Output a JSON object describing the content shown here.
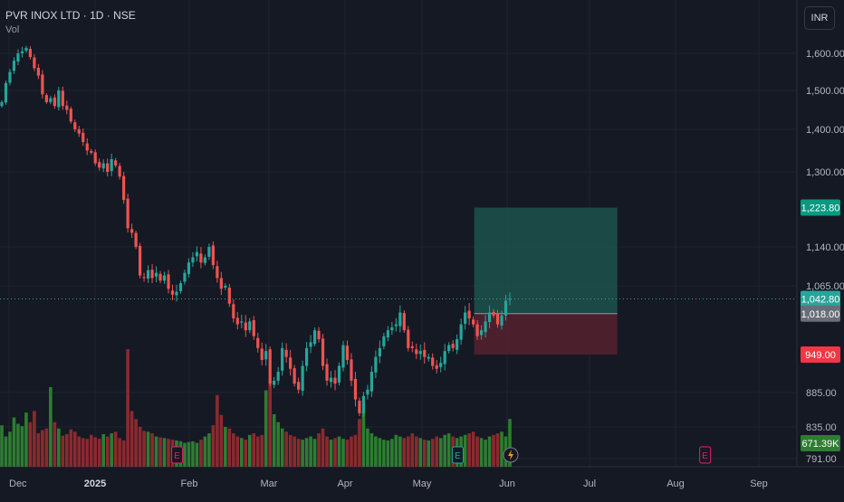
{
  "header": {
    "title": "PVR INOX LTD · 1D · NSE",
    "volume_label": "Vol",
    "currency_button": "INR"
  },
  "colors": {
    "background": "#151924",
    "up": "#26a69a",
    "down": "#ef5350",
    "up_vol": "#2e7d32",
    "down_vol": "#8b2a2e",
    "target_zone": "#1e5a52",
    "stop_zone": "#5a2130",
    "grid": "#1f2430",
    "axis_text": "#b2b5be"
  },
  "chart_data": {
    "type": "candlestick",
    "symbol": "PVR INOX LTD",
    "interval": "1D",
    "exchange": "NSE",
    "currency": "INR",
    "y_ticks": [
      "1,600.00",
      "1,500.00",
      "1,400.00",
      "1,300.00",
      "1,140.00",
      "1,065.00",
      "885.00",
      "835.00",
      "791.00"
    ],
    "y_tick_values": [
      1600,
      1500,
      1400,
      1300,
      1140,
      1065,
      885,
      835,
      791
    ],
    "x_ticks": [
      "Dec",
      "2025",
      "Feb",
      "Mar",
      "Apr",
      "May",
      "Jun",
      "Jul",
      "Aug",
      "Sep"
    ],
    "price_labels": {
      "target": {
        "text": "1,223.80",
        "value": 1223.8
      },
      "last_price": {
        "text": "1,042.80",
        "value": 1042.8
      },
      "entry": {
        "text": "1,018.00",
        "value": 1018.0
      },
      "stop": {
        "text": "949.00",
        "value": 949.0
      },
      "volume": {
        "text": "671.39K"
      }
    },
    "events": [
      {
        "label": "E",
        "date": "2025-01-28"
      },
      {
        "label": "E",
        "date": "2025-05-14"
      },
      {
        "label": "E",
        "date": "2025-08-12"
      }
    ],
    "position_tool": {
      "entry": 1018.0,
      "target": 1223.8,
      "stop": 949.0,
      "start": "2025-05-20",
      "end": "2025-07-11"
    },
    "closes": [
      1470,
      1520,
      1550,
      1580,
      1600,
      1605,
      1615,
      1590,
      1560,
      1540,
      1490,
      1470,
      1480,
      1460,
      1500,
      1460,
      1450,
      1420,
      1400,
      1390,
      1370,
      1350,
      1345,
      1320,
      1310,
      1320,
      1300,
      1330,
      1315,
      1290,
      1240,
      1180,
      1170,
      1140,
      1085,
      1080,
      1095,
      1080,
      1090,
      1075,
      1085,
      1060,
      1050,
      1055,
      1070,
      1090,
      1110,
      1120,
      1130,
      1110,
      1120,
      1140,
      1105,
      1080,
      1060,
      1065,
      1035,
      1010,
      1000,
      1005,
      990,
      1005,
      980,
      960,
      940,
      955,
      900,
      905,
      920,
      960,
      945,
      925,
      900,
      890,
      930,
      960,
      970,
      990,
      975,
      930,
      905,
      910,
      900,
      930,
      965,
      940,
      905,
      875,
      855,
      880,
      890,
      920,
      945,
      960,
      980,
      990,
      995,
      1000,
      1020,
      990,
      960,
      960,
      950,
      955,
      945,
      945,
      930,
      925,
      935,
      955,
      965,
      960,
      975,
      1000,
      1020,
      1010,
      1000,
      980,
      990,
      1005,
      1020,
      1015,
      1000,
      1015,
      1040,
      1042.8
    ],
    "volumes_k": [
      520,
      380,
      440,
      620,
      540,
      510,
      680,
      560,
      700,
      420,
      460,
      480,
      1000,
      560,
      480,
      390,
      410,
      470,
      440,
      380,
      360,
      350,
      400,
      370,
      350,
      410,
      380,
      420,
      440,
      360,
      330,
      1500,
      700,
      600,
      500,
      450,
      440,
      420,
      380,
      370,
      360,
      350,
      340,
      330,
      320,
      300,
      310,
      320,
      300,
      340,
      380,
      420,
      520,
      900,
      650,
      500,
      480,
      420,
      380,
      360,
      340,
      400,
      420,
      380,
      400,
      960,
      1100,
      660,
      560,
      480,
      440,
      400,
      380,
      350,
      340,
      360,
      380,
      350,
      420,
      480,
      380,
      340,
      360,
      380,
      350,
      340,
      380,
      400,
      600,
      700,
      480,
      420,
      380,
      360,
      340,
      330,
      350,
      400,
      380,
      360,
      380,
      420,
      380,
      360,
      340,
      330,
      350,
      380,
      360,
      400,
      420,
      380,
      360,
      380,
      400,
      420,
      440,
      380,
      360,
      340,
      380,
      400,
      420,
      440,
      380,
      600,
      671.39
    ]
  }
}
